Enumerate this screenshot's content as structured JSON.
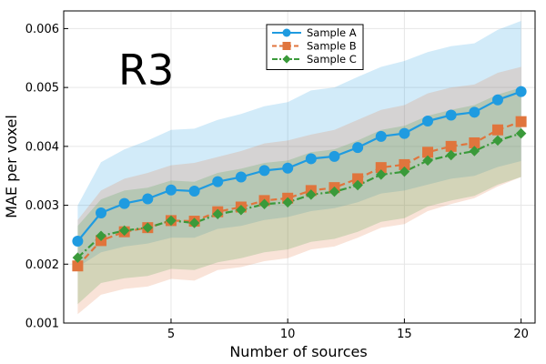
{
  "chart_data": {
    "type": "line",
    "annotation": "R3",
    "xlabel": "Number of sources",
    "ylabel": "MAE per voxel",
    "xlim": [
      0.4,
      20.6
    ],
    "ylim": [
      0.001,
      0.0063
    ],
    "xticks": [
      5,
      10,
      15,
      20
    ],
    "xtick_labels": [
      "5",
      "10",
      "15",
      "20"
    ],
    "yticks": [
      0.001,
      0.002,
      0.003,
      0.004,
      0.005,
      0.006
    ],
    "ytick_labels": [
      "0.001",
      "0.002",
      "0.003",
      "0.004",
      "0.005",
      "0.006"
    ],
    "grid": true,
    "legend_position": "top-right",
    "x": [
      1,
      2,
      3,
      4,
      5,
      6,
      7,
      8,
      9,
      10,
      11,
      12,
      13,
      14,
      15,
      16,
      17,
      18,
      19,
      20
    ],
    "series": [
      {
        "name": "Sample A",
        "color": "#1f9be0",
        "marker": "circle",
        "linestyle": "solid",
        "values": [
          0.00239,
          0.00287,
          0.00303,
          0.00311,
          0.00326,
          0.00324,
          0.0034,
          0.00348,
          0.00359,
          0.00363,
          0.00379,
          0.00383,
          0.00398,
          0.00417,
          0.00422,
          0.00443,
          0.00453,
          0.00458,
          0.00479,
          0.00493
        ],
        "band_lower": [
          0.00195,
          0.0022,
          0.0023,
          0.00235,
          0.00245,
          0.00245,
          0.0026,
          0.00265,
          0.00275,
          0.0028,
          0.0029,
          0.00295,
          0.00305,
          0.0032,
          0.00325,
          0.00335,
          0.00345,
          0.0035,
          0.00365,
          0.00375
        ],
        "band_upper": [
          0.003,
          0.00373,
          0.00395,
          0.0041,
          0.00428,
          0.0043,
          0.00445,
          0.00455,
          0.00468,
          0.00475,
          0.00495,
          0.005,
          0.00518,
          0.00535,
          0.00545,
          0.0056,
          0.0057,
          0.00575,
          0.00598,
          0.00613
        ]
      },
      {
        "name": "Sample B",
        "color": "#e0753d",
        "marker": "square",
        "linestyle": "dashed",
        "values": [
          0.00197,
          0.0024,
          0.00255,
          0.00262,
          0.00274,
          0.00273,
          0.00289,
          0.00297,
          0.00308,
          0.00312,
          0.00325,
          0.0033,
          0.00345,
          0.00364,
          0.00369,
          0.0039,
          0.004,
          0.00406,
          0.00428,
          0.00442
        ],
        "band_lower": [
          0.00115,
          0.00148,
          0.00158,
          0.00162,
          0.00175,
          0.00172,
          0.0019,
          0.00195,
          0.00205,
          0.0021,
          0.00225,
          0.0023,
          0.00245,
          0.00262,
          0.00268,
          0.0029,
          0.00302,
          0.00312,
          0.00332,
          0.00348
        ],
        "band_upper": [
          0.00275,
          0.00325,
          0.00345,
          0.00355,
          0.00368,
          0.00372,
          0.00382,
          0.00392,
          0.00405,
          0.0041,
          0.0042,
          0.00428,
          0.00445,
          0.00462,
          0.0047,
          0.0049,
          0.005,
          0.00505,
          0.00525,
          0.00535
        ]
      },
      {
        "name": "Sample C",
        "color": "#3a9a3a",
        "marker": "diamond",
        "linestyle": "dashdot",
        "values": [
          0.00211,
          0.00248,
          0.00257,
          0.00262,
          0.00274,
          0.0027,
          0.00285,
          0.00292,
          0.00302,
          0.00305,
          0.00318,
          0.00323,
          0.00334,
          0.00352,
          0.00357,
          0.00376,
          0.00385,
          0.00392,
          0.0041,
          0.00422
        ],
        "band_lower": [
          0.00132,
          0.00168,
          0.00176,
          0.0018,
          0.00192,
          0.0019,
          0.00203,
          0.0021,
          0.0022,
          0.00225,
          0.00238,
          0.00243,
          0.00255,
          0.00272,
          0.00278,
          0.00298,
          0.00308,
          0.00316,
          0.00335,
          0.00348
        ],
        "band_upper": [
          0.00265,
          0.0031,
          0.00325,
          0.0033,
          0.00342,
          0.0034,
          0.00355,
          0.00362,
          0.00372,
          0.00376,
          0.0039,
          0.00395,
          0.0041,
          0.00428,
          0.00435,
          0.00452,
          0.00462,
          0.0047,
          0.00488,
          0.005
        ]
      }
    ]
  }
}
